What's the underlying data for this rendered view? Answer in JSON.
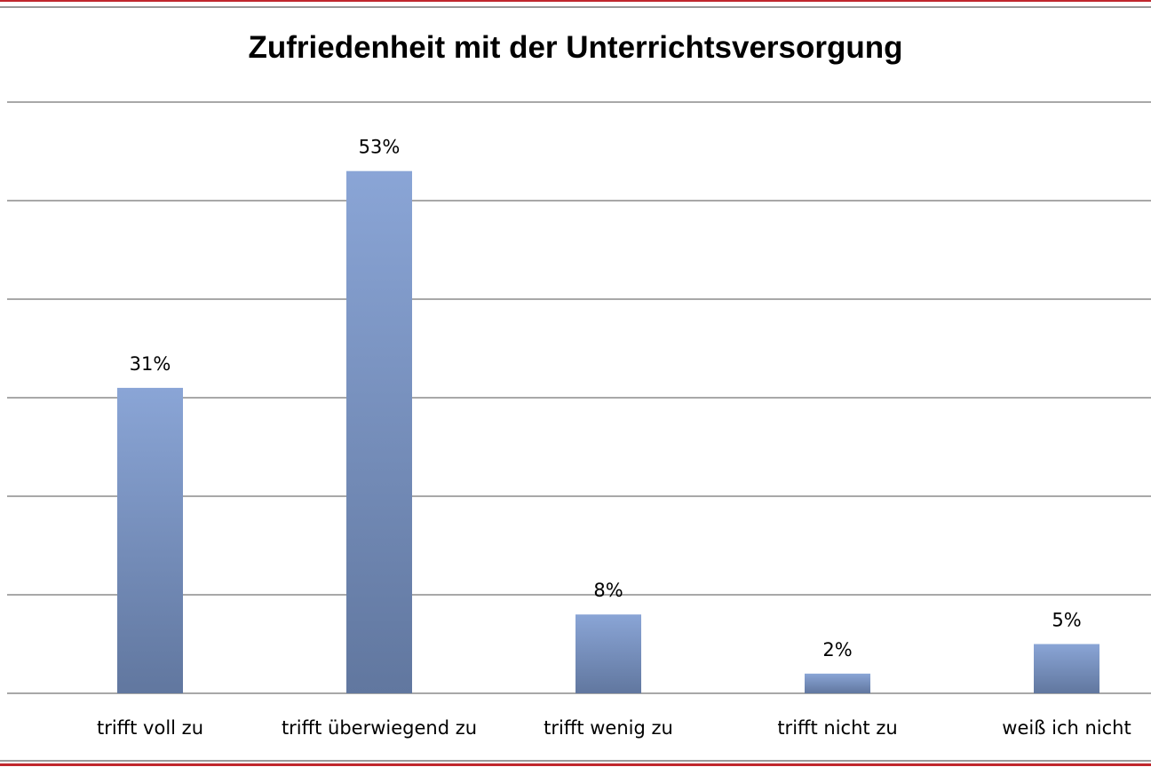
{
  "chart_data": {
    "type": "bar",
    "title": "Zufriedenheit mit der Unterrichtsversorgung",
    "categories": [
      "trifft voll zu",
      "trifft überwiegend  zu",
      "trifft wenig  zu",
      "trifft nicht zu",
      "weiß ich nicht"
    ],
    "values": [
      31,
      53,
      8,
      2,
      5
    ],
    "data_labels": [
      "31%",
      "53%",
      "8%",
      "2%",
      "5%"
    ],
    "xlabel": "",
    "ylabel": "",
    "ylim": [
      0,
      60
    ],
    "grid_step": 10,
    "grid": true,
    "legend": "none",
    "colors": {
      "bar_top": "#8aa5d6",
      "bar_bottom": "#61779f",
      "border": "#c0272d",
      "grid": "#8c8c8c"
    }
  }
}
